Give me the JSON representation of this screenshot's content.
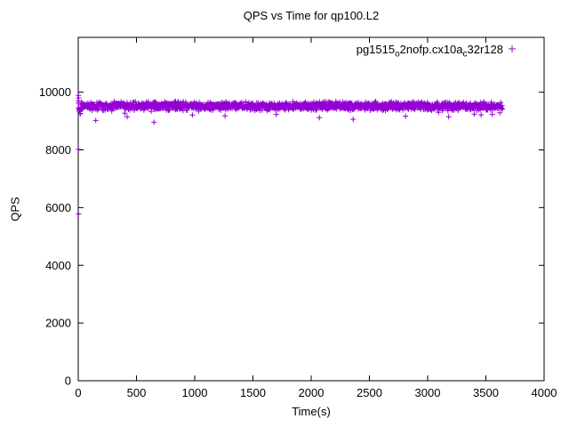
{
  "chart_data": {
    "type": "scatter",
    "title": "QPS vs Time for qp100.L2",
    "xlabel": "Time(s)",
    "ylabel": "QPS",
    "xlim": [
      0,
      4000
    ],
    "ylim": [
      0,
      11900
    ],
    "xticks": [
      0,
      500,
      1000,
      1500,
      2000,
      2500,
      3000,
      3500,
      4000
    ],
    "yticks": [
      0,
      2000,
      4000,
      6000,
      8000,
      10000
    ],
    "grid": false,
    "legend_position": "top-right-inside",
    "series": [
      {
        "name": "pg1515_o2nofp.cx10a_c32r128",
        "label_parts": {
          "p1": "pg1515",
          "sub1": "o",
          "p2": "2nofp.cx10a",
          "sub2": "c",
          "p3": "32r128"
        },
        "marker": "plus",
        "color": "#9400D3",
        "band": {
          "n": 1500,
          "x_min": 1,
          "x_max": 3640,
          "y_mean": 9520,
          "y_spread": 170,
          "seed": 42
        },
        "outliers": [
          [
            3,
            5780
          ],
          [
            2,
            8020
          ],
          [
            2,
            9890
          ],
          [
            4,
            9800
          ],
          [
            3,
            9700
          ],
          [
            5,
            9350
          ],
          [
            150,
            9020
          ],
          [
            420,
            9150
          ],
          [
            650,
            8960
          ],
          [
            980,
            9210
          ],
          [
            1260,
            9180
          ],
          [
            1700,
            9230
          ],
          [
            2070,
            9120
          ],
          [
            2360,
            9060
          ],
          [
            2810,
            9170
          ],
          [
            3180,
            9150
          ],
          [
            3400,
            9240
          ],
          [
            3555,
            9230
          ],
          [
            3620,
            9290
          ]
        ]
      }
    ]
  }
}
